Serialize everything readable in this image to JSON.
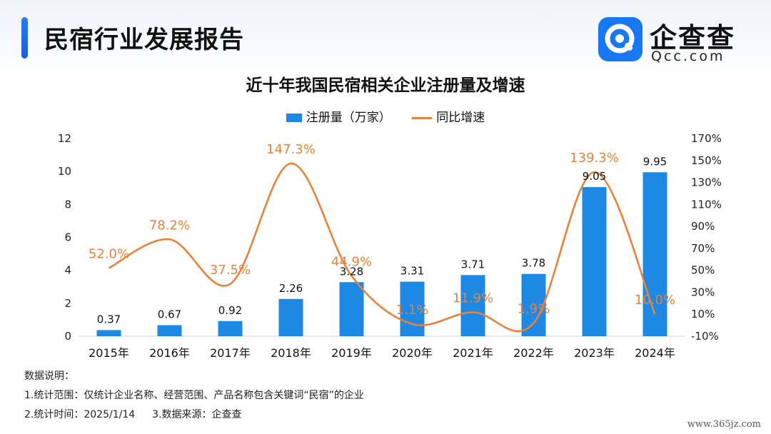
{
  "header": {
    "title": "民宿行业发展报告",
    "logo_name": "企查查",
    "logo_sub": "Qcc.com",
    "accent_color": "#1e6ff0"
  },
  "legend": {
    "bar_label": "注册量（万家）",
    "line_label": "同比增速"
  },
  "chart_data": {
    "type": "bar",
    "title": "近十年我国民宿相关企业注册量及增速",
    "categories": [
      "2015年",
      "2016年",
      "2017年",
      "2018年",
      "2019年",
      "2020年",
      "2021年",
      "2022年",
      "2023年",
      "2024年"
    ],
    "series": [
      {
        "name": "注册量（万家）",
        "type": "bar",
        "axis": "left",
        "color": "#1e88e5",
        "values": [
          0.37,
          0.67,
          0.92,
          2.26,
          3.28,
          3.31,
          3.71,
          3.78,
          9.05,
          9.95
        ],
        "labels": [
          "0.37",
          "0.67",
          "0.92",
          "2.26",
          "3.28",
          "3.31",
          "3.71",
          "3.78",
          "9.05",
          "9.95"
        ]
      },
      {
        "name": "同比增速",
        "type": "line",
        "axis": "right",
        "color": "#e8823a",
        "values": [
          52.0,
          78.2,
          37.5,
          147.3,
          44.9,
          1.1,
          11.9,
          1.9,
          139.3,
          10.0
        ],
        "labels": [
          "52.0%",
          "78.2%",
          "37.5%",
          "147.3%",
          "44.9%",
          "1.1%",
          "11.9%",
          "1.9%",
          "139.3%",
          "10.0%"
        ]
      }
    ],
    "y_left": {
      "min": 0,
      "max": 12,
      "ticks": [
        0,
        2,
        4,
        6,
        8,
        10,
        12
      ],
      "tick_labels": [
        "0",
        "2",
        "4",
        "6",
        "8",
        "10",
        "12"
      ]
    },
    "y_right": {
      "min": -10,
      "max": 170,
      "ticks": [
        -10,
        10,
        30,
        50,
        70,
        90,
        110,
        130,
        150,
        170
      ],
      "tick_labels": [
        "-10%",
        "10%",
        "30%",
        "50%",
        "70%",
        "90%",
        "110%",
        "130%",
        "150%",
        "170%"
      ]
    },
    "grid": false,
    "legend_position": "top-center"
  },
  "notes": {
    "heading": "数据说明：",
    "line1": "1.统计范围：仅统计企业名称、经营范围、产品名称包含关键词“民宿”的企业",
    "line2a": "2.统计时间：2025/1/14",
    "line2b": "3.数据来源：企查查"
  },
  "watermark": "www.365jz.com"
}
